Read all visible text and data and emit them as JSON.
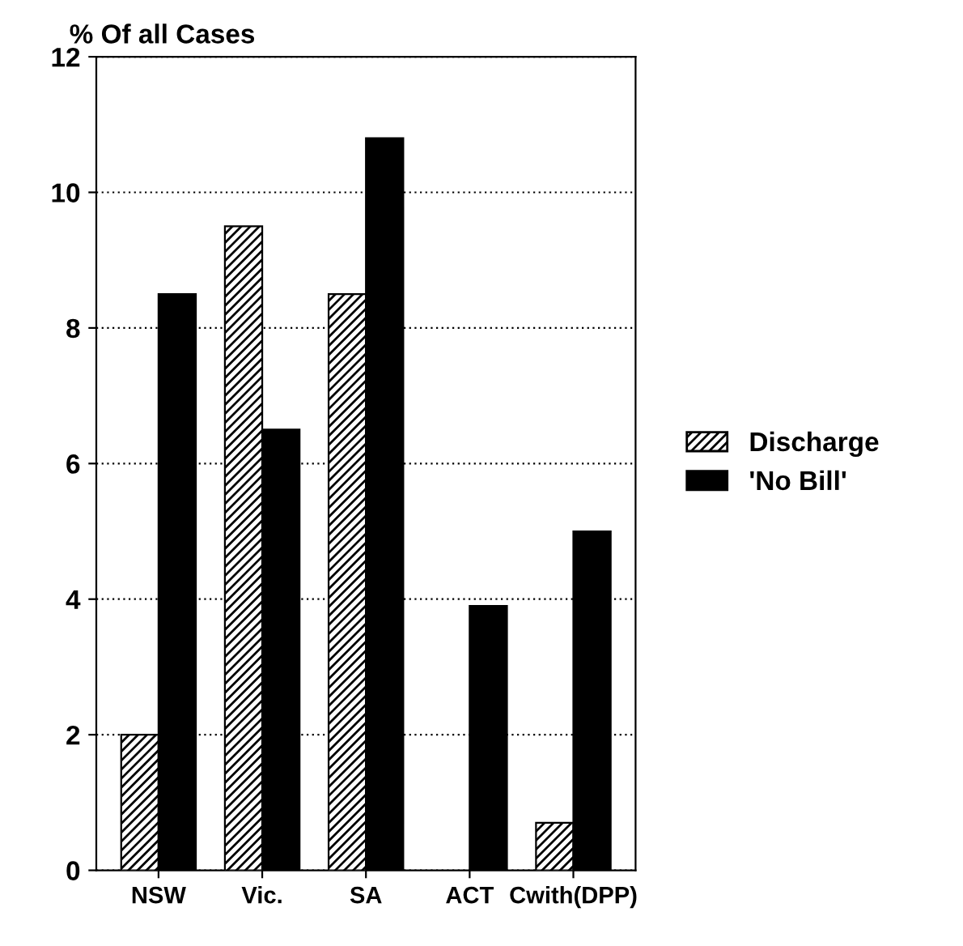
{
  "chart_data": {
    "type": "bar",
    "ylabel": "% Of all Cases",
    "categories": [
      "NSW",
      "Vic.",
      "SA",
      "ACT",
      "Cwith(DPP)"
    ],
    "series": [
      {
        "name": "Discharge",
        "color": "#000000",
        "values": [
          2.0,
          9.5,
          8.5,
          null,
          0.7
        ]
      },
      {
        "name": "'No Bill'",
        "color": "#000000",
        "values": [
          8.5,
          6.5,
          10.8,
          3.9,
          5.0
        ]
      }
    ],
    "ylim": [
      0,
      12
    ],
    "yticks": [
      0,
      2,
      4,
      6,
      8,
      10,
      12
    ],
    "grid": "y",
    "legend": "right"
  }
}
